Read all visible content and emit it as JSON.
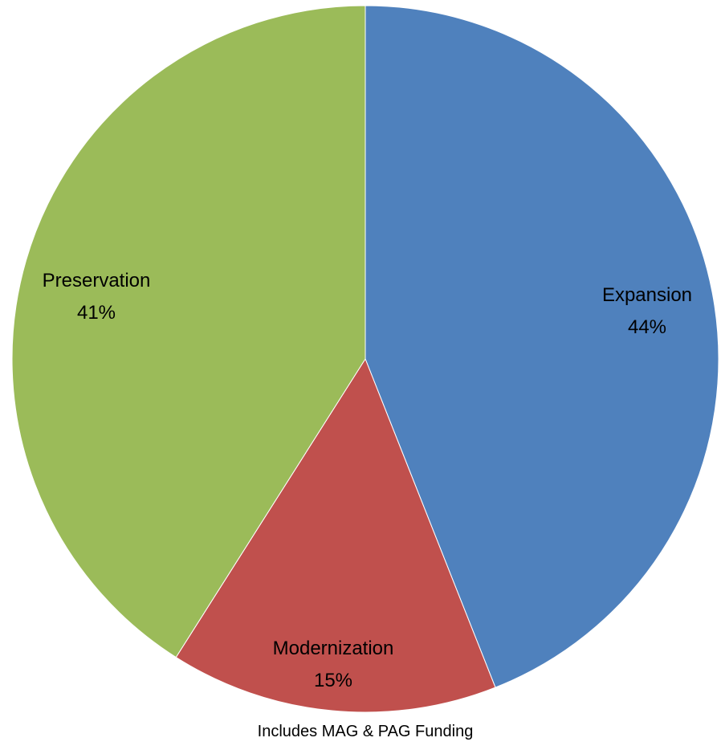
{
  "chart_data": {
    "type": "pie",
    "slices": [
      {
        "label": "Expansion",
        "percent_label": "44%",
        "value": 44,
        "color": "#4F81BD"
      },
      {
        "label": "Modernization",
        "percent_label": "15%",
        "value": 15,
        "color": "#C0504D"
      },
      {
        "label": "Preservation",
        "percent_label": "41%",
        "value": 41,
        "color": "#9BBB59"
      }
    ],
    "start_angle": "12 o'clock",
    "direction": "clockwise",
    "legend": "none",
    "caption": "Includes MAG & PAG Funding"
  }
}
